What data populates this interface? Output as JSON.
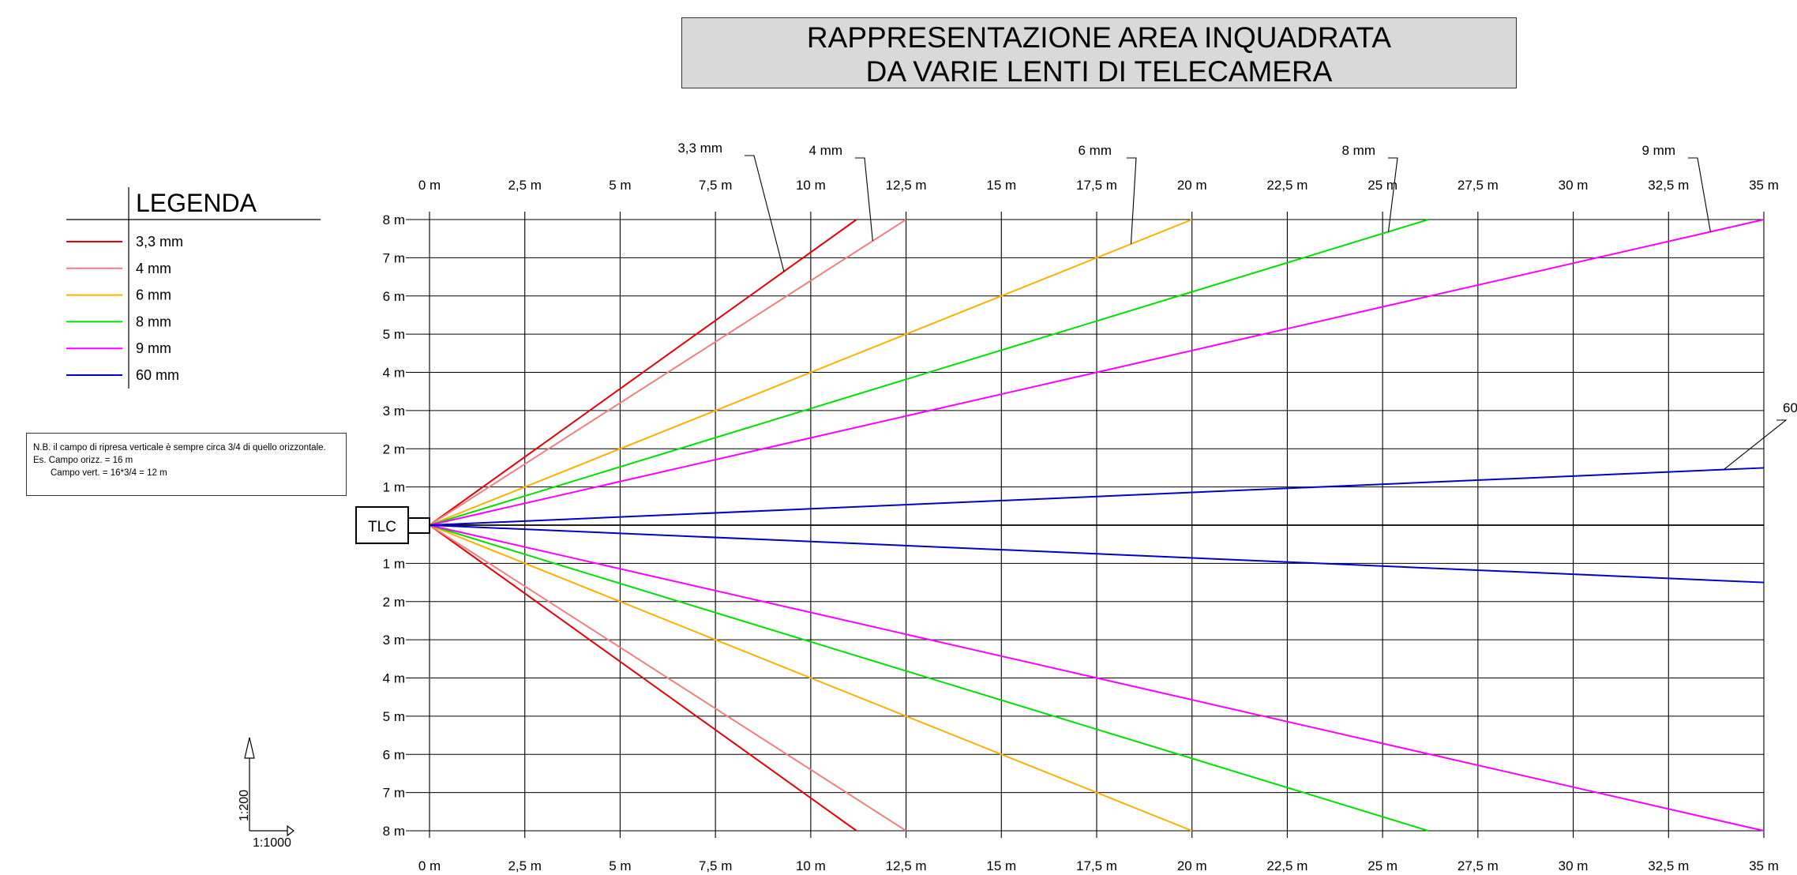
{
  "title": {
    "line1": "RAPPRESENTAZIONE AREA INQUADRATA",
    "line2": "DA VARIE LENTI DI TELECAMERA"
  },
  "legend": {
    "heading": "LEGENDA",
    "items": [
      {
        "label": "3,3 mm",
        "color": "#e8000b"
      },
      {
        "label": "4 mm",
        "color": "#f08080"
      },
      {
        "label": "6 mm",
        "color": "#ffb000"
      },
      {
        "label": "8 mm",
        "color": "#00e000"
      },
      {
        "label": "9 mm",
        "color": "#ff00ff"
      },
      {
        "label": "60 mm",
        "color": "#0000c8"
      }
    ]
  },
  "note": {
    "line1": "N.B. il campo di ripresa verticale è sempre circa 3/4 di quello orizzontale.",
    "line2": "Es. Campo orizz. = 16 m",
    "line3": "Campo vert. = 16*3/4 = 12 m"
  },
  "camera_label": "TLC",
  "scale": {
    "vertical": "1:200",
    "horizontal": "1:1000"
  },
  "chart_data": {
    "type": "line",
    "x_ticks": [
      "0 m",
      "2,5 m",
      "5 m",
      "7,5 m",
      "10 m",
      "12,5 m",
      "15 m",
      "17,5 m",
      "20 m",
      "22,5 m",
      "25 m",
      "27,5 m",
      "30 m",
      "32,5 m",
      "35 m"
    ],
    "x_values": [
      0,
      2.5,
      5,
      7.5,
      10,
      12.5,
      15,
      17.5,
      20,
      22.5,
      25,
      27.5,
      30,
      32.5,
      35
    ],
    "y_ticks_upper": [
      "8 m",
      "7 m",
      "6 m",
      "5 m",
      "4 m",
      "3 m",
      "2 m",
      "1 m"
    ],
    "y_ticks_lower": [
      "1 m",
      "2 m",
      "3 m",
      "4 m",
      "5 m",
      "6 m",
      "7 m",
      "8 m"
    ],
    "xlim": [
      0,
      35
    ],
    "ylim": [
      -8,
      8
    ],
    "grid": true,
    "series": [
      {
        "name": "3,3 mm",
        "color": "#e8000b",
        "end_x": 11.2,
        "end_y": 8,
        "callout": "3,3 mm"
      },
      {
        "name": "4 mm",
        "color": "#f08080",
        "end_x": 12.5,
        "end_y": 8,
        "callout": "4 mm"
      },
      {
        "name": "6 mm",
        "color": "#ffb000",
        "end_x": 20,
        "end_y": 8,
        "callout": "6 mm"
      },
      {
        "name": "8 mm",
        "color": "#00e000",
        "end_x": 26.2,
        "end_y": 8,
        "callout": "8 mm"
      },
      {
        "name": "9 mm",
        "color": "#ff00ff",
        "end_x": 35,
        "end_y": 8,
        "callout": "9 mm"
      },
      {
        "name": "60 mm",
        "color": "#0000c8",
        "end_x": 35,
        "end_y": 1.5,
        "callout": "60"
      }
    ]
  }
}
